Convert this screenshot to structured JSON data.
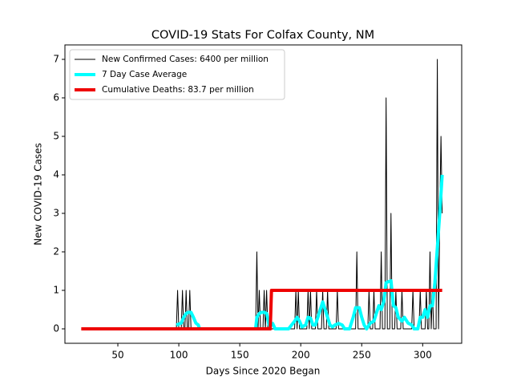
{
  "chart_data": {
    "type": "line",
    "title": "COVID-19 Stats For Colfax County, NM",
    "x_label": "Days Since 2020 Began",
    "y_label": "New COVID-19 Cases",
    "xlim": [
      6.6,
      332
    ],
    "ylim": [
      -0.375,
      7.375
    ],
    "xticks": [
      50,
      100,
      150,
      200,
      250,
      300
    ],
    "yticks": [
      0,
      1,
      2,
      3,
      4,
      5,
      6,
      7
    ],
    "legend": "upper left",
    "series": [
      {
        "name": "New Confirmed Cases: 6400 per million",
        "color": "#000000",
        "width": 1,
        "x": [
          98,
          99,
          100,
          102,
          103,
          104,
          105,
          106,
          107,
          108,
          109,
          110,
          163,
          164,
          165,
          166,
          167,
          169,
          170,
          171,
          172,
          173,
          195,
          196,
          197,
          198,
          199,
          205,
          206,
          207,
          208,
          209,
          212,
          213,
          214,
          217,
          218,
          219,
          221,
          222,
          223,
          229,
          230,
          231,
          245,
          246,
          247,
          255,
          256,
          257,
          259,
          260,
          261,
          265,
          266,
          267,
          269,
          270,
          271,
          273,
          274,
          275,
          277,
          278,
          279,
          282,
          283,
          284,
          291,
          292,
          293,
          297,
          298,
          299,
          302,
          303,
          304,
          305,
          306,
          307,
          308,
          309,
          311,
          312,
          313,
          314,
          315,
          316
        ],
        "values": [
          0,
          1,
          0,
          0,
          1,
          0,
          0,
          1,
          0,
          0,
          1,
          0,
          0,
          2,
          0,
          1,
          0,
          0,
          1,
          0,
          1,
          0,
          0,
          1,
          0,
          1,
          0,
          0,
          1,
          0,
          1,
          0,
          0,
          1,
          0,
          0,
          1,
          0,
          0,
          1,
          0,
          0,
          1,
          0,
          0,
          2,
          0,
          0,
          1,
          0,
          0,
          1,
          0,
          0,
          2,
          0,
          0,
          6,
          0,
          0,
          3,
          0,
          0,
          1,
          0,
          0,
          1,
          0,
          0,
          1,
          0,
          0,
          1,
          0,
          0,
          1,
          0,
          0,
          2,
          0,
          1,
          0,
          0,
          7,
          0,
          3,
          5,
          3
        ]
      },
      {
        "name": "7 Day Case Average",
        "color": "#00ffff",
        "width": 4,
        "x": [
          98,
          102,
          104,
          106,
          108,
          110,
          112,
          114,
          116,
          117,
          140,
          163,
          164,
          166,
          168,
          170,
          172,
          174,
          176,
          177,
          179,
          190,
          195,
          197,
          199,
          201,
          204,
          206,
          208,
          210,
          212,
          214,
          216,
          218,
          220,
          222,
          224,
          226,
          228,
          231,
          234,
          236,
          240,
          243,
          245,
          248,
          250,
          252,
          254,
          257,
          260,
          262,
          264,
          266,
          268,
          270,
          274,
          276,
          278,
          280,
          283,
          285,
          288,
          291,
          293,
          296,
          298,
          300,
          302,
          304,
          306,
          308,
          310,
          312,
          314,
          316
        ],
        "values": [
          0.1,
          0.15,
          0.3,
          0.4,
          0.43,
          0.43,
          0.3,
          0.15,
          0.1,
          0,
          null,
          0,
          0.3,
          0.4,
          0.43,
          0.43,
          0.4,
          0.1,
          0.1,
          0.14,
          0,
          0,
          0.2,
          0.3,
          0.2,
          0.05,
          0.1,
          0.3,
          0.28,
          0.1,
          0.1,
          0.3,
          0.5,
          0.7,
          0.5,
          0.3,
          0.1,
          0.05,
          0.1,
          0.14,
          0.1,
          0,
          0,
          0.3,
          0.55,
          0.55,
          0.3,
          0.1,
          0,
          0.15,
          0.2,
          0.4,
          0.6,
          0.5,
          0.7,
          1.2,
          1.25,
          0.6,
          0.55,
          0.3,
          0.2,
          0.3,
          0.15,
          0.1,
          0,
          0,
          0.3,
          0.3,
          0.5,
          0.3,
          0.6,
          0.6,
          1.2,
          2.1,
          3,
          4
        ]
      },
      {
        "name": "Cumulative Deaths: 83.7 per million",
        "color": "#ee0000",
        "width": 4,
        "x": [
          20,
          175,
          176,
          316
        ],
        "values": [
          0,
          0,
          1,
          1
        ]
      }
    ]
  }
}
